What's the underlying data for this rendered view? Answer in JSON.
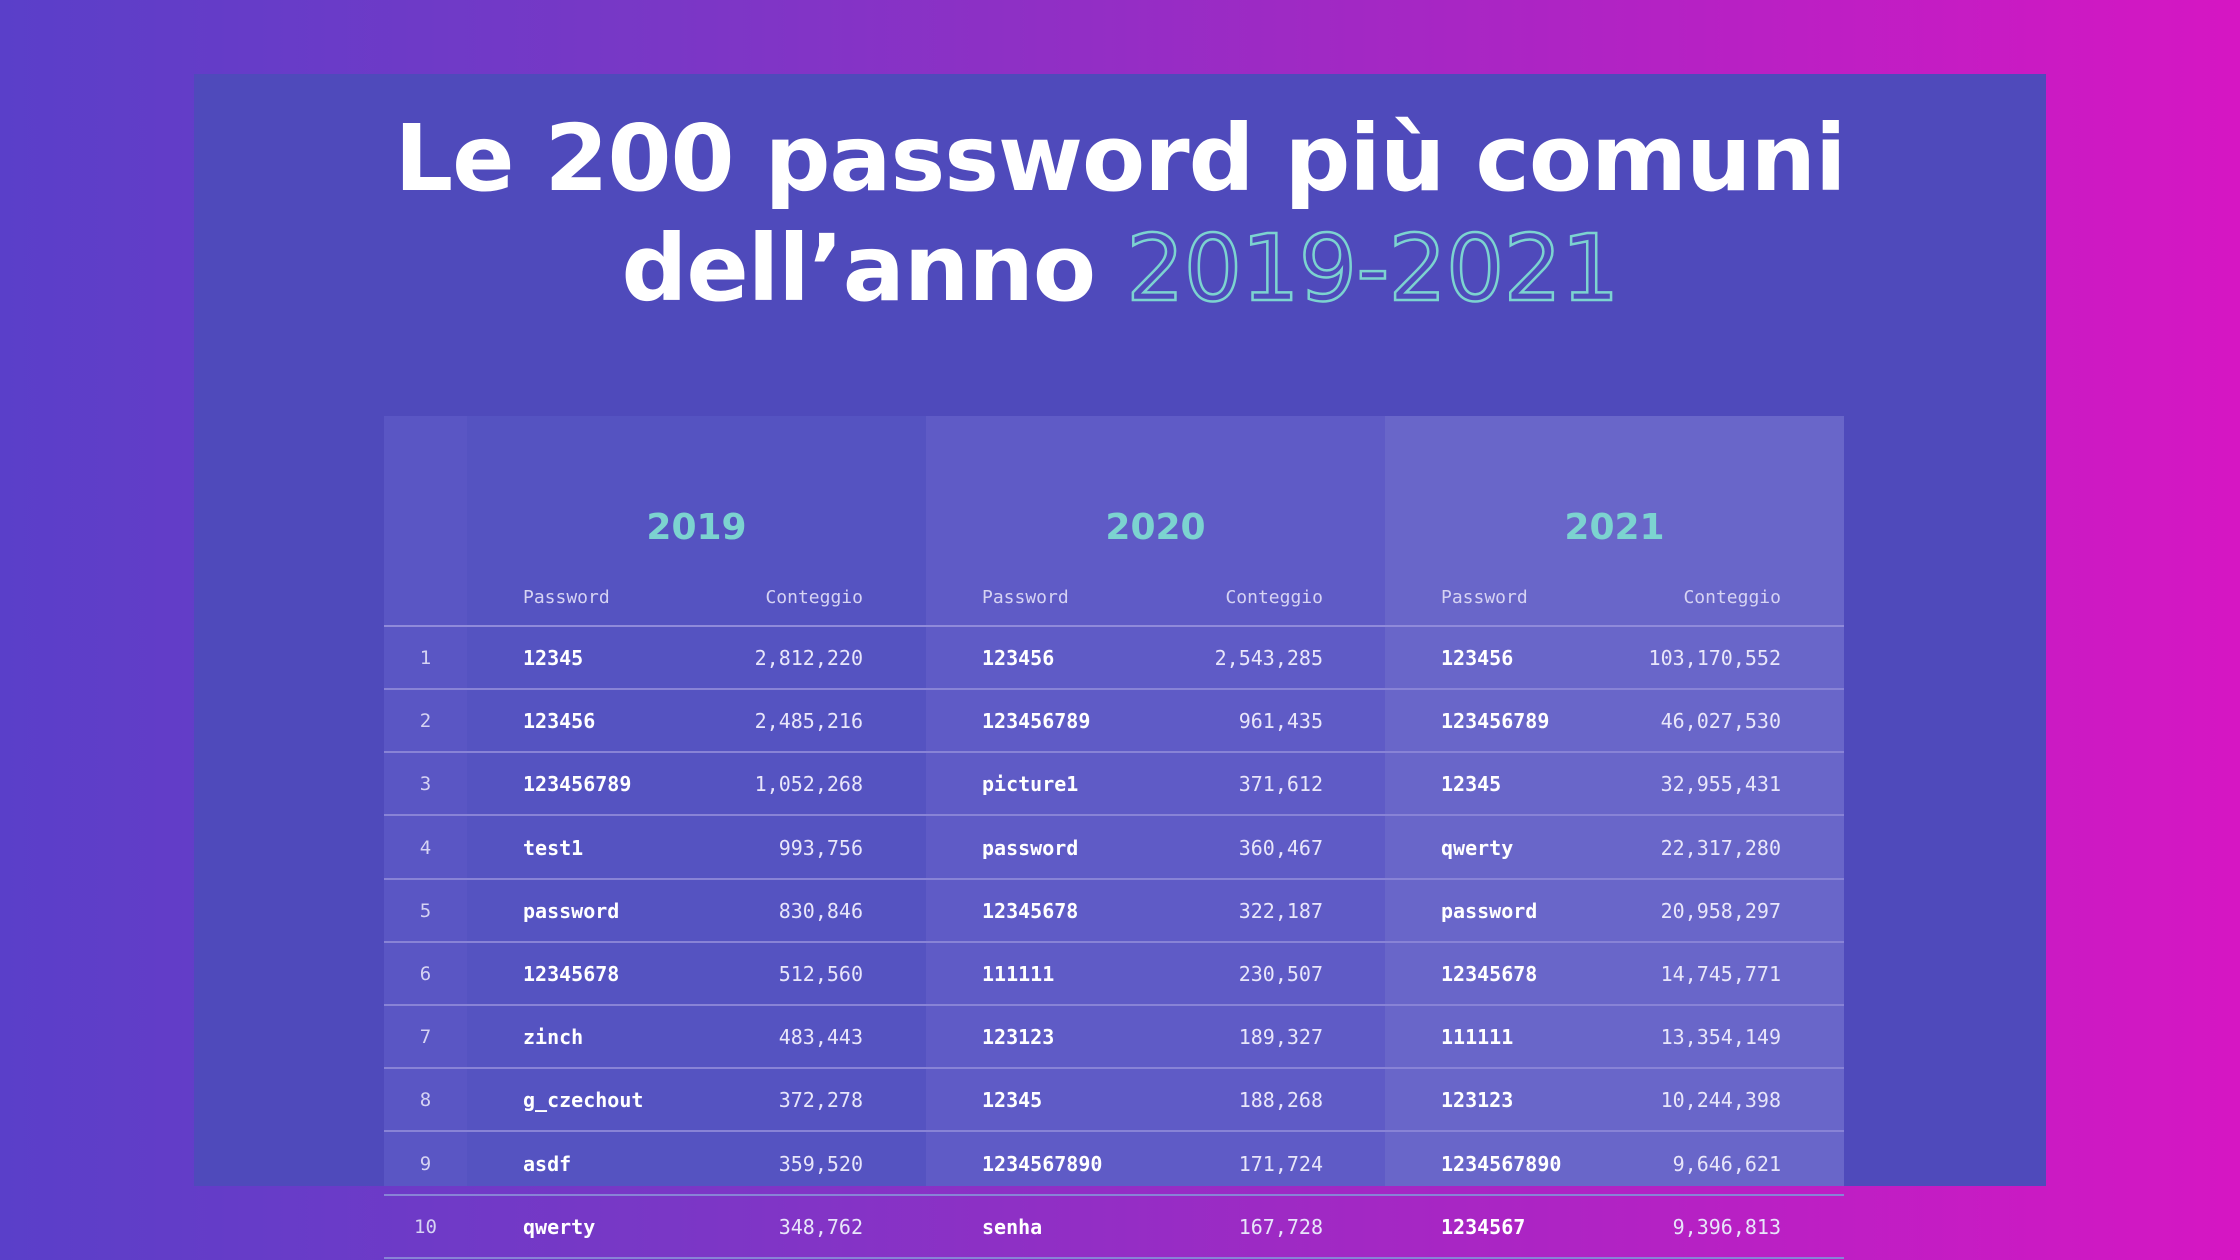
{
  "title": {
    "line1": "Le 200 password più comuni",
    "line2_prefix": "dell’anno ",
    "line2_years": "2019-2021"
  },
  "table": {
    "years": [
      "2019",
      "2020",
      "2021"
    ],
    "col_password": "Password",
    "col_count": "Conteggio",
    "rows": [
      {
        "rank": "1",
        "y2019": {
          "pw": "12345",
          "count": "2,812,220"
        },
        "y2020": {
          "pw": "123456",
          "count": "2,543,285"
        },
        "y2021": {
          "pw": "123456",
          "count": "103,170,552"
        }
      },
      {
        "rank": "2",
        "y2019": {
          "pw": "123456",
          "count": "2,485,216"
        },
        "y2020": {
          "pw": "123456789",
          "count": "961,435"
        },
        "y2021": {
          "pw": "123456789",
          "count": "46,027,530"
        }
      },
      {
        "rank": "3",
        "y2019": {
          "pw": "123456789",
          "count": "1,052,268"
        },
        "y2020": {
          "pw": "picture1",
          "count": "371,612"
        },
        "y2021": {
          "pw": "12345",
          "count": "32,955,431"
        }
      },
      {
        "rank": "4",
        "y2019": {
          "pw": "test1",
          "count": "993,756"
        },
        "y2020": {
          "pw": "password",
          "count": "360,467"
        },
        "y2021": {
          "pw": "qwerty",
          "count": "22,317,280"
        }
      },
      {
        "rank": "5",
        "y2019": {
          "pw": "password",
          "count": "830,846"
        },
        "y2020": {
          "pw": "12345678",
          "count": "322,187"
        },
        "y2021": {
          "pw": "password",
          "count": "20,958,297"
        }
      },
      {
        "rank": "6",
        "y2019": {
          "pw": "12345678",
          "count": "512,560"
        },
        "y2020": {
          "pw": "111111",
          "count": "230,507"
        },
        "y2021": {
          "pw": "12345678",
          "count": "14,745,771"
        }
      },
      {
        "rank": "7",
        "y2019": {
          "pw": "zinch",
          "count": "483,443"
        },
        "y2020": {
          "pw": "123123",
          "count": "189,327"
        },
        "y2021": {
          "pw": "111111",
          "count": "13,354,149"
        }
      },
      {
        "rank": "8",
        "y2019": {
          "pw": "g_czechout",
          "count": "372,278"
        },
        "y2020": {
          "pw": "12345",
          "count": "188,268"
        },
        "y2021": {
          "pw": "123123",
          "count": "10,244,398"
        }
      },
      {
        "rank": "9",
        "y2019": {
          "pw": "asdf",
          "count": "359,520"
        },
        "y2020": {
          "pw": "1234567890",
          "count": "171,724"
        },
        "y2021": {
          "pw": "1234567890",
          "count": "9,646,621"
        }
      },
      {
        "rank": "10",
        "y2019": {
          "pw": "qwerty",
          "count": "348,762"
        },
        "y2020": {
          "pw": "senha",
          "count": "167,728"
        },
        "y2021": {
          "pw": "1234567",
          "count": "9,396,813"
        }
      }
    ]
  },
  "colors": {
    "panel": "#4f4abb",
    "accent": "#7cd3d0",
    "text": "#ffffff"
  }
}
